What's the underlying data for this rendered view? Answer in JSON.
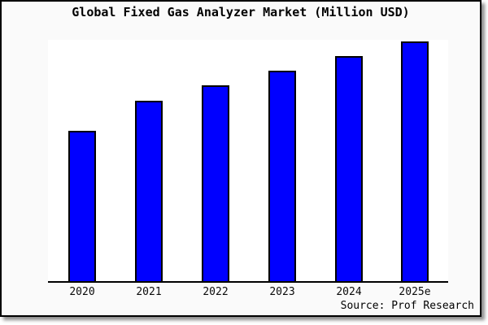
{
  "chart": {
    "frame_background": "#fafafa",
    "plot_background": "#ffffff",
    "axis_color": "#000000"
  },
  "chart_data": {
    "type": "bar",
    "title": "Global Fixed Gas Analyzer Market (Million USD)",
    "categories": [
      "2020",
      "2021",
      "2022",
      "2023",
      "2024",
      "2025e"
    ],
    "values_pct_of_max": [
      62.5,
      75,
      81.5,
      87.5,
      93.5,
      100
    ],
    "bar_height_pct_of_plot": [
      62.2,
      74.9,
      81.3,
      87.3,
      93.3,
      99.5
    ],
    "xlabel": "",
    "ylabel": "",
    "y_axis_tick_labels_visible": false,
    "gridlines": false,
    "legend": "none",
    "bar_color": "#0000ff",
    "bar_edge_color": "#000000",
    "annotation": "Source: Prof Research"
  }
}
